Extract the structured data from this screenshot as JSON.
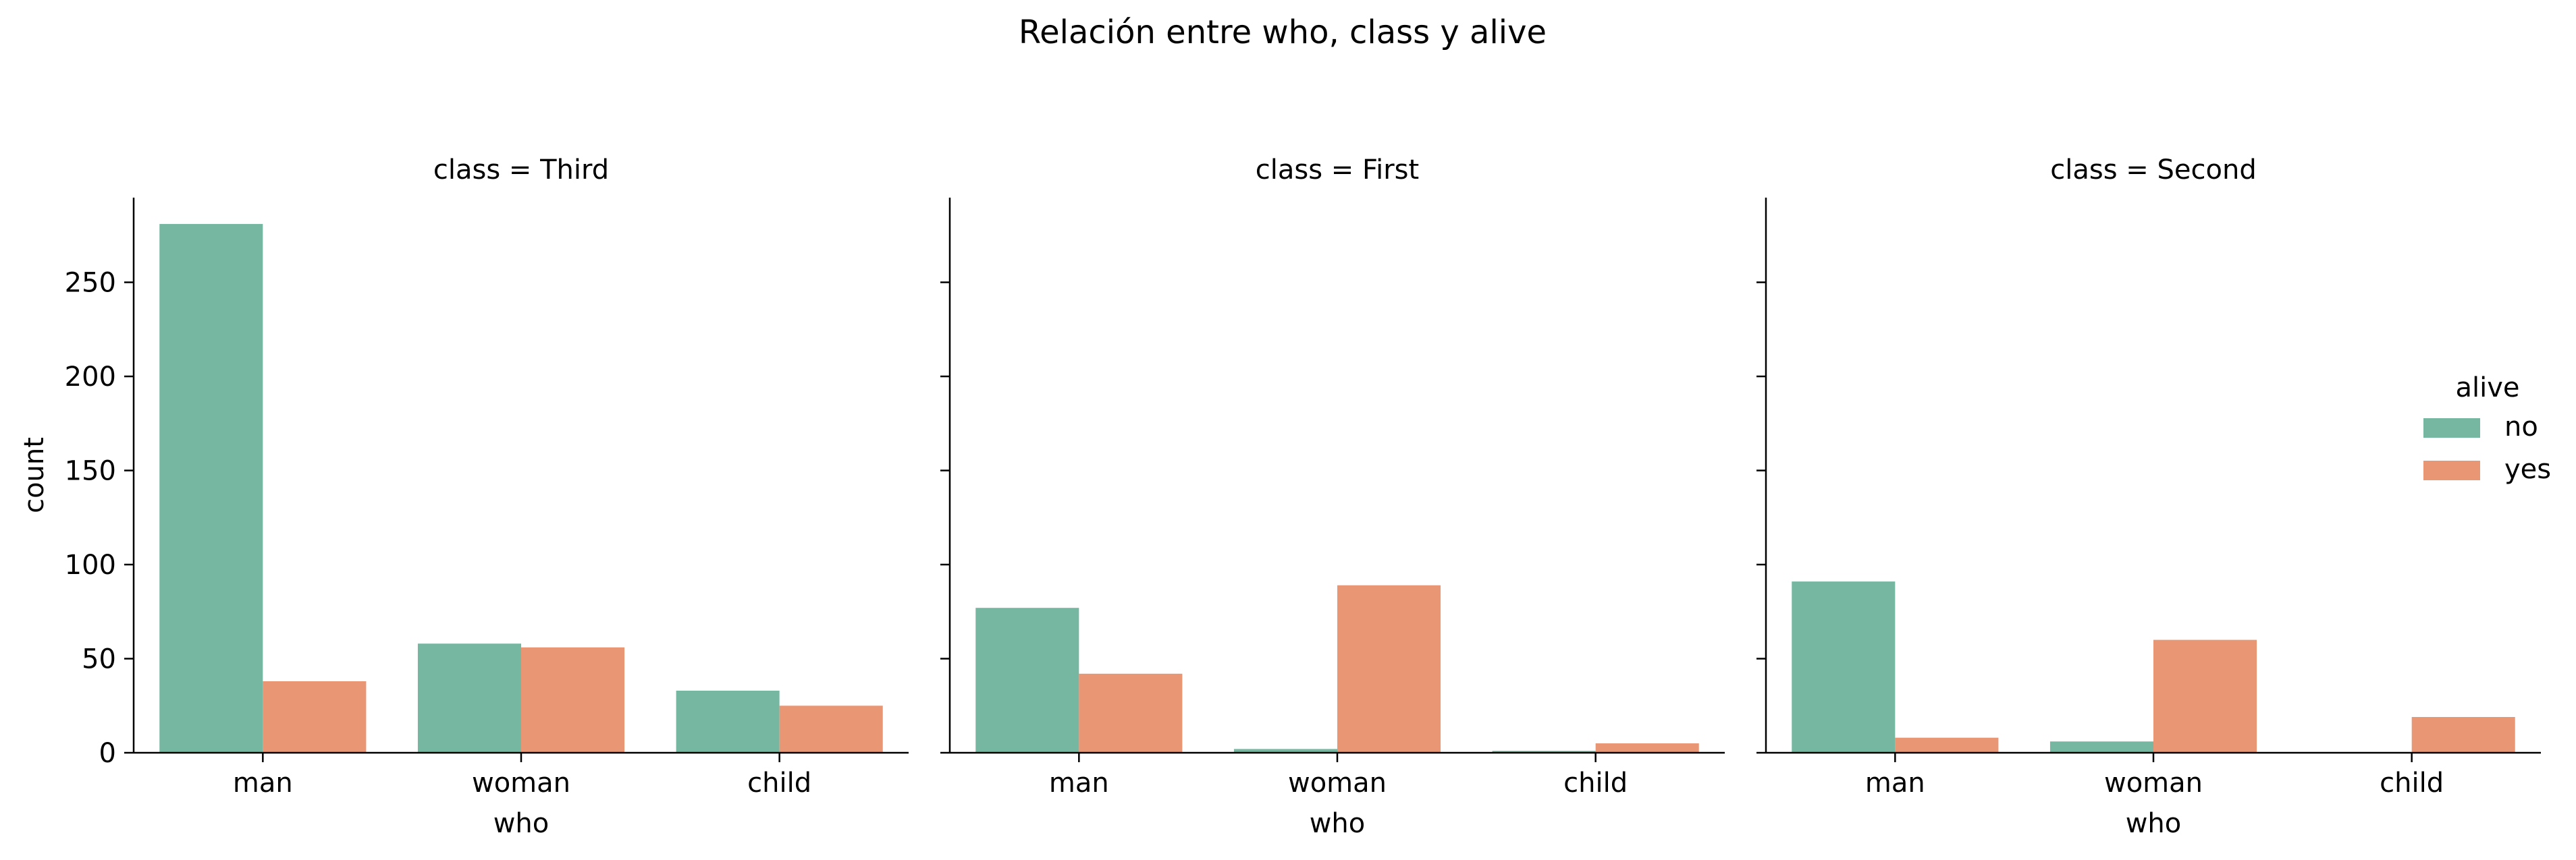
{
  "chart_data": {
    "type": "bar",
    "title": "Relación entre who, class y alive",
    "xlabel": "who",
    "ylabel": "count",
    "categories": [
      "man",
      "woman",
      "child"
    ],
    "ylim": [
      0,
      295
    ],
    "yticks": [
      0,
      50,
      100,
      150,
      200,
      250
    ],
    "grid": false,
    "legend": {
      "title": "alive",
      "placement": "right",
      "entries": [
        {
          "name": "no",
          "color": "#75b7a1"
        },
        {
          "name": "yes",
          "color": "#e99675"
        }
      ]
    },
    "panels": [
      {
        "label": "class = Third",
        "series": [
          {
            "name": "no",
            "values": [
              281,
              58,
              33
            ]
          },
          {
            "name": "yes",
            "values": [
              38,
              56,
              25
            ]
          }
        ]
      },
      {
        "label": "class = First",
        "series": [
          {
            "name": "no",
            "values": [
              77,
              2,
              1
            ]
          },
          {
            "name": "yes",
            "values": [
              42,
              89,
              5
            ]
          }
        ]
      },
      {
        "label": "class = Second",
        "series": [
          {
            "name": "no",
            "values": [
              91,
              6,
              0
            ]
          },
          {
            "name": "yes",
            "values": [
              8,
              60,
              19
            ]
          }
        ]
      }
    ]
  }
}
